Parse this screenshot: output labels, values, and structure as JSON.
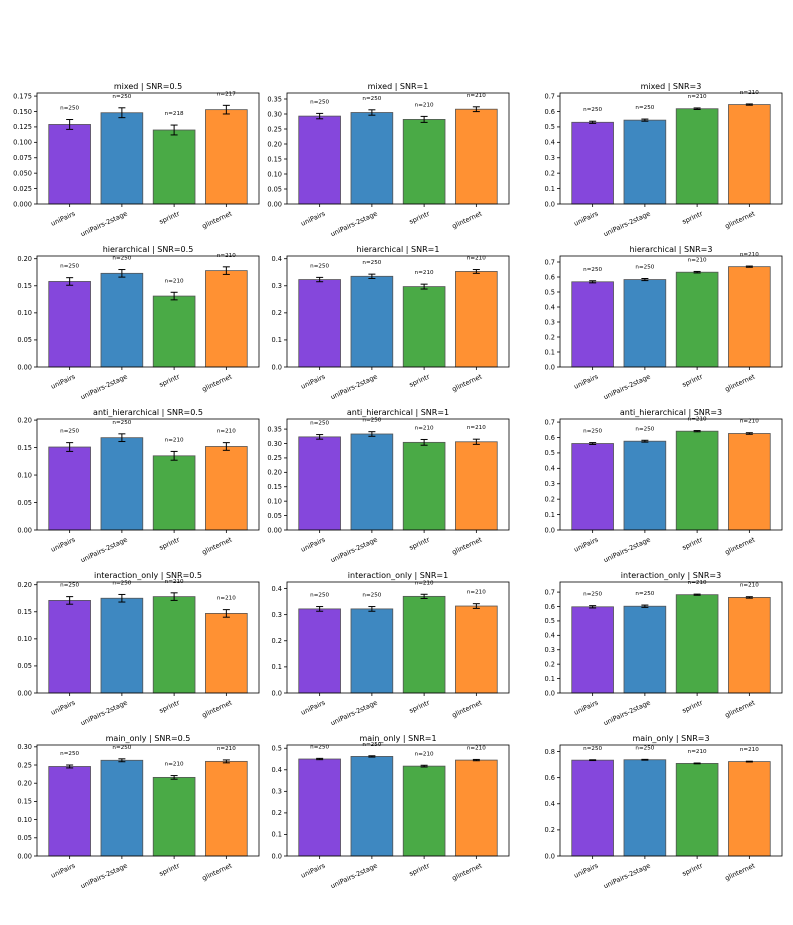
{
  "figure": {
    "rows": 5,
    "cols": 3
  },
  "colors": {
    "uniPairs": "#8547dc",
    "uniPairs-2stage": "#3e88c1",
    "sprintr": "#4aaa46",
    "glinternet": "#ff9133",
    "edge": "#555555",
    "err": "#000000"
  },
  "chart_data": [
    {
      "type": "bar",
      "title": "mixed | SNR=0.5",
      "categories": [
        "uniPairs",
        "uniPairs-2stage",
        "sprintr",
        "glinternet"
      ],
      "values": [
        0.129,
        0.148,
        0.12,
        0.153
      ],
      "err": [
        0.008,
        0.008,
        0.008,
        0.007
      ],
      "labels": [
        "n=250",
        "n=250",
        "n=218",
        "n=217"
      ],
      "ylim": [
        0,
        0.18
      ],
      "yticks": [
        "0.000",
        "0.025",
        "0.050",
        "0.075",
        "0.100",
        "0.125",
        "0.150",
        "0.175"
      ]
    },
    {
      "type": "bar",
      "title": "mixed | SNR=1",
      "categories": [
        "uniPairs",
        "uniPairs-2stage",
        "sprintr",
        "glinternet"
      ],
      "values": [
        0.293,
        0.305,
        0.282,
        0.316
      ],
      "err": [
        0.009,
        0.009,
        0.01,
        0.008
      ],
      "labels": [
        "n=250",
        "n=250",
        "n=210",
        "n=210"
      ],
      "ylim": [
        0,
        0.37
      ],
      "yticks": [
        "0.00",
        "0.05",
        "0.10",
        "0.15",
        "0.20",
        "0.25",
        "0.30",
        "0.35"
      ]
    },
    {
      "type": "bar",
      "title": "mixed | SNR=3",
      "categories": [
        "uniPairs",
        "uniPairs-2stage",
        "sprintr",
        "glinternet"
      ],
      "values": [
        0.53,
        0.544,
        0.618,
        0.645
      ],
      "err": [
        0.007,
        0.007,
        0.005,
        0.004
      ],
      "labels": [
        "n=250",
        "n=250",
        "n=210",
        "n=210"
      ],
      "ylim": [
        0,
        0.72
      ],
      "yticks": [
        "0.0",
        "0.1",
        "0.2",
        "0.3",
        "0.4",
        "0.5",
        "0.6",
        "0.7"
      ]
    },
    {
      "type": "bar",
      "title": "hierarchical | SNR=0.5",
      "categories": [
        "uniPairs",
        "uniPairs-2stage",
        "sprintr",
        "glinternet"
      ],
      "values": [
        0.158,
        0.173,
        0.131,
        0.178
      ],
      "err": [
        0.007,
        0.007,
        0.007,
        0.007
      ],
      "labels": [
        "n=250",
        "n=250",
        "n=210",
        "n=210"
      ],
      "ylim": [
        0,
        0.205
      ],
      "yticks": [
        "0.00",
        "0.05",
        "0.10",
        "0.15",
        "0.20"
      ]
    },
    {
      "type": "bar",
      "title": "hierarchical | SNR=1",
      "categories": [
        "uniPairs",
        "uniPairs-2stage",
        "sprintr",
        "glinternet"
      ],
      "values": [
        0.323,
        0.335,
        0.297,
        0.353
      ],
      "err": [
        0.008,
        0.008,
        0.009,
        0.007
      ],
      "labels": [
        "n=250",
        "n=250",
        "n=210",
        "n=210"
      ],
      "ylim": [
        0,
        0.41
      ],
      "yticks": [
        "0.0",
        "0.1",
        "0.2",
        "0.3",
        "0.4"
      ]
    },
    {
      "type": "bar",
      "title": "hierarchical | SNR=3",
      "categories": [
        "uniPairs",
        "uniPairs-2stage",
        "sprintr",
        "glinternet"
      ],
      "values": [
        0.568,
        0.583,
        0.632,
        0.669
      ],
      "err": [
        0.007,
        0.007,
        0.005,
        0.004
      ],
      "labels": [
        "n=250",
        "n=250",
        "n=210",
        "n=210"
      ],
      "ylim": [
        0,
        0.74
      ],
      "yticks": [
        "0.0",
        "0.1",
        "0.2",
        "0.3",
        "0.4",
        "0.5",
        "0.6",
        "0.7"
      ]
    },
    {
      "type": "bar",
      "title": "anti_hierarchical | SNR=0.5",
      "categories": [
        "uniPairs",
        "uniPairs-2stage",
        "sprintr",
        "glinternet"
      ],
      "values": [
        0.151,
        0.168,
        0.135,
        0.152
      ],
      "err": [
        0.008,
        0.007,
        0.008,
        0.007
      ],
      "labels": [
        "n=250",
        "n=250",
        "n=210",
        "n=210"
      ],
      "ylim": [
        0,
        0.202
      ],
      "yticks": [
        "0.00",
        "0.05",
        "0.10",
        "0.15",
        "0.20"
      ]
    },
    {
      "type": "bar",
      "title": "anti_hierarchical | SNR=1",
      "categories": [
        "uniPairs",
        "uniPairs-2stage",
        "sprintr",
        "glinternet"
      ],
      "values": [
        0.323,
        0.333,
        0.304,
        0.306
      ],
      "err": [
        0.008,
        0.008,
        0.01,
        0.009
      ],
      "labels": [
        "n=250",
        "n=250",
        "n=210",
        "n=210"
      ],
      "ylim": [
        0,
        0.385
      ],
      "yticks": [
        "0.00",
        "0.05",
        "0.10",
        "0.15",
        "0.20",
        "0.25",
        "0.30",
        "0.35"
      ]
    },
    {
      "type": "bar",
      "title": "anti_hierarchical | SNR=3",
      "categories": [
        "uniPairs",
        "uniPairs-2stage",
        "sprintr",
        "glinternet"
      ],
      "values": [
        0.561,
        0.576,
        0.641,
        0.626
      ],
      "err": [
        0.006,
        0.006,
        0.004,
        0.005
      ],
      "labels": [
        "n=250",
        "n=250",
        "n=210",
        "n=210"
      ],
      "ylim": [
        0,
        0.72
      ],
      "yticks": [
        "0.0",
        "0.1",
        "0.2",
        "0.3",
        "0.4",
        "0.5",
        "0.6",
        "0.7"
      ]
    },
    {
      "type": "bar",
      "title": "interaction_only | SNR=0.5",
      "categories": [
        "uniPairs",
        "uniPairs-2stage",
        "sprintr",
        "glinternet"
      ],
      "values": [
        0.171,
        0.175,
        0.178,
        0.147
      ],
      "err": [
        0.007,
        0.007,
        0.007,
        0.007
      ],
      "labels": [
        "n=250",
        "n=250",
        "n=210",
        "n=210"
      ],
      "ylim": [
        0,
        0.205
      ],
      "yticks": [
        "0.00",
        "0.05",
        "0.10",
        "0.15",
        "0.20"
      ]
    },
    {
      "type": "bar",
      "title": "interaction_only | SNR=1",
      "categories": [
        "uniPairs",
        "uniPairs-2stage",
        "sprintr",
        "glinternet"
      ],
      "values": [
        0.322,
        0.322,
        0.37,
        0.333
      ],
      "err": [
        0.009,
        0.009,
        0.008,
        0.009
      ],
      "labels": [
        "n=250",
        "n=250",
        "n=210",
        "n=210"
      ],
      "ylim": [
        0,
        0.425
      ],
      "yticks": [
        "0.0",
        "0.1",
        "0.2",
        "0.3",
        "0.4"
      ]
    },
    {
      "type": "bar",
      "title": "interaction_only | SNR=3",
      "categories": [
        "uniPairs",
        "uniPairs-2stage",
        "sprintr",
        "glinternet"
      ],
      "values": [
        0.598,
        0.602,
        0.682,
        0.663
      ],
      "err": [
        0.008,
        0.008,
        0.004,
        0.005
      ],
      "labels": [
        "n=250",
        "n=250",
        "n=210",
        "n=210"
      ],
      "ylim": [
        0,
        0.77
      ],
      "yticks": [
        "0.0",
        "0.1",
        "0.2",
        "0.3",
        "0.4",
        "0.5",
        "0.6",
        "0.7"
      ]
    },
    {
      "type": "bar",
      "title": "main_only | SNR=0.5",
      "categories": [
        "uniPairs",
        "uniPairs-2stage",
        "sprintr",
        "glinternet"
      ],
      "values": [
        0.246,
        0.263,
        0.216,
        0.26
      ],
      "err": [
        0.004,
        0.004,
        0.005,
        0.004
      ],
      "labels": [
        "n=250",
        "n=250",
        "n=210",
        "n=210"
      ],
      "ylim": [
        0,
        0.305
      ],
      "yticks": [
        "0.00",
        "0.05",
        "0.10",
        "0.15",
        "0.20",
        "0.25",
        "0.30"
      ]
    },
    {
      "type": "bar",
      "title": "main_only | SNR=1",
      "categories": [
        "uniPairs",
        "uniPairs-2stage",
        "sprintr",
        "glinternet"
      ],
      "values": [
        0.45,
        0.462,
        0.417,
        0.445
      ],
      "err": [
        0.003,
        0.003,
        0.004,
        0.003
      ],
      "labels": [
        "n=250",
        "n=250",
        "n=210",
        "n=210"
      ],
      "ylim": [
        0,
        0.515
      ],
      "yticks": [
        "0.0",
        "0.1",
        "0.2",
        "0.3",
        "0.4",
        "0.5"
      ]
    },
    {
      "type": "bar",
      "title": "main_only | SNR=3",
      "categories": [
        "uniPairs",
        "uniPairs-2stage",
        "sprintr",
        "glinternet"
      ],
      "values": [
        0.734,
        0.737,
        0.709,
        0.723
      ],
      "err": [
        0.003,
        0.003,
        0.003,
        0.003
      ],
      "labels": [
        "n=250",
        "n=250",
        "n=210",
        "n=210"
      ],
      "ylim": [
        0,
        0.85
      ],
      "yticks": [
        "0.0",
        "0.2",
        "0.4",
        "0.6",
        "0.8"
      ]
    }
  ]
}
